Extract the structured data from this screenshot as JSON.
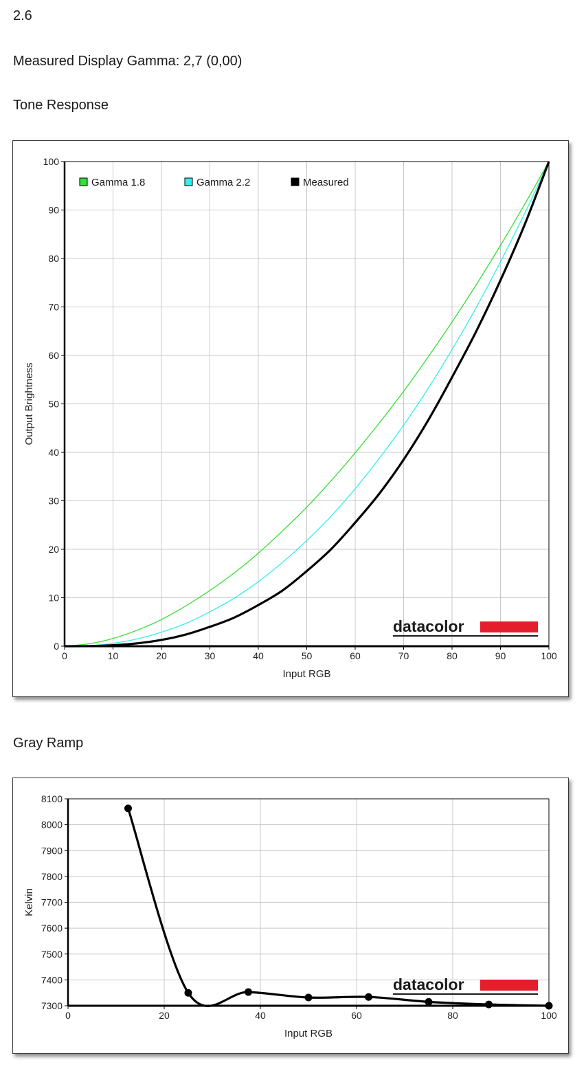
{
  "page": {
    "version_label": "2.6",
    "gamma_line": "Measured Display Gamma: 2,7 (0,00)",
    "section_tone": "Tone Response",
    "section_gray": "Gray Ramp"
  },
  "brand": {
    "logo_text": "datacolor",
    "accent_color": "#e41e2b"
  },
  "chart_data": [
    {
      "id": "tone",
      "type": "line",
      "xlabel": "Input RGB",
      "ylabel": "Output Brightness",
      "xlim": [
        0,
        100
      ],
      "ylim": [
        0,
        100
      ],
      "x_ticks": [
        0,
        10,
        20,
        30,
        40,
        50,
        60,
        70,
        80,
        90,
        100
      ],
      "y_ticks": [
        0,
        10,
        20,
        30,
        40,
        50,
        60,
        70,
        80,
        90,
        100
      ],
      "grid": true,
      "legend_position": "top-left",
      "series": [
        {
          "name": "Gamma 1.8",
          "color": "#33e033",
          "width": 1.3,
          "x": [
            0,
            5,
            10,
            15,
            20,
            25,
            30,
            35,
            40,
            45,
            50,
            55,
            60,
            65,
            70,
            75,
            80,
            85,
            90,
            95,
            100
          ],
          "y": [
            0,
            0.5,
            1.6,
            3.3,
            5.5,
            8.3,
            11.5,
            15.1,
            19.2,
            23.8,
            28.7,
            34.1,
            39.9,
            46.1,
            52.6,
            59.6,
            66.9,
            74.6,
            82.7,
            91.2,
            100
          ]
        },
        {
          "name": "Gamma 2.2",
          "color": "#33eeee",
          "width": 1.3,
          "x": [
            0,
            5,
            10,
            15,
            20,
            25,
            30,
            35,
            40,
            45,
            50,
            55,
            60,
            65,
            70,
            75,
            80,
            85,
            90,
            95,
            100
          ],
          "y": [
            0,
            0.1,
            0.6,
            1.5,
            2.9,
            4.7,
            7.1,
            9.9,
            13.3,
            17.3,
            21.8,
            26.8,
            32.5,
            38.8,
            45.6,
            53.1,
            61.2,
            69.9,
            79.3,
            89.3,
            100
          ]
        },
        {
          "name": "Measured",
          "color": "#000000",
          "width": 3.2,
          "x": [
            0,
            5,
            10,
            15,
            20,
            25,
            30,
            35,
            40,
            45,
            50,
            55,
            60,
            65,
            70,
            75,
            80,
            85,
            90,
            95,
            100
          ],
          "y": [
            0,
            0.03,
            0.2,
            0.6,
            1.3,
            2.4,
            4.0,
            5.9,
            8.5,
            11.5,
            15.5,
            20.0,
            25.5,
            31.5,
            38.5,
            46.5,
            55.5,
            65.0,
            75.5,
            87.0,
            100
          ]
        }
      ]
    },
    {
      "id": "gray",
      "type": "line",
      "xlabel": "Input RGB",
      "ylabel": "Kelvin",
      "xlim": [
        0,
        100
      ],
      "ylim": [
        7300,
        8100
      ],
      "x_ticks": [
        0,
        20,
        40,
        60,
        80,
        100
      ],
      "y_ticks": [
        7300,
        7400,
        7500,
        7600,
        7700,
        7800,
        7900,
        8000,
        8100
      ],
      "grid": true,
      "series": [
        {
          "color": "#000000",
          "width": 3.2,
          "markers": true,
          "x": [
            12.5,
            25,
            37.5,
            50,
            62.5,
            75,
            87.5,
            100
          ],
          "y": [
            8063,
            7350,
            7353,
            7332,
            7334,
            7315,
            7305,
            7300
          ]
        }
      ]
    }
  ]
}
